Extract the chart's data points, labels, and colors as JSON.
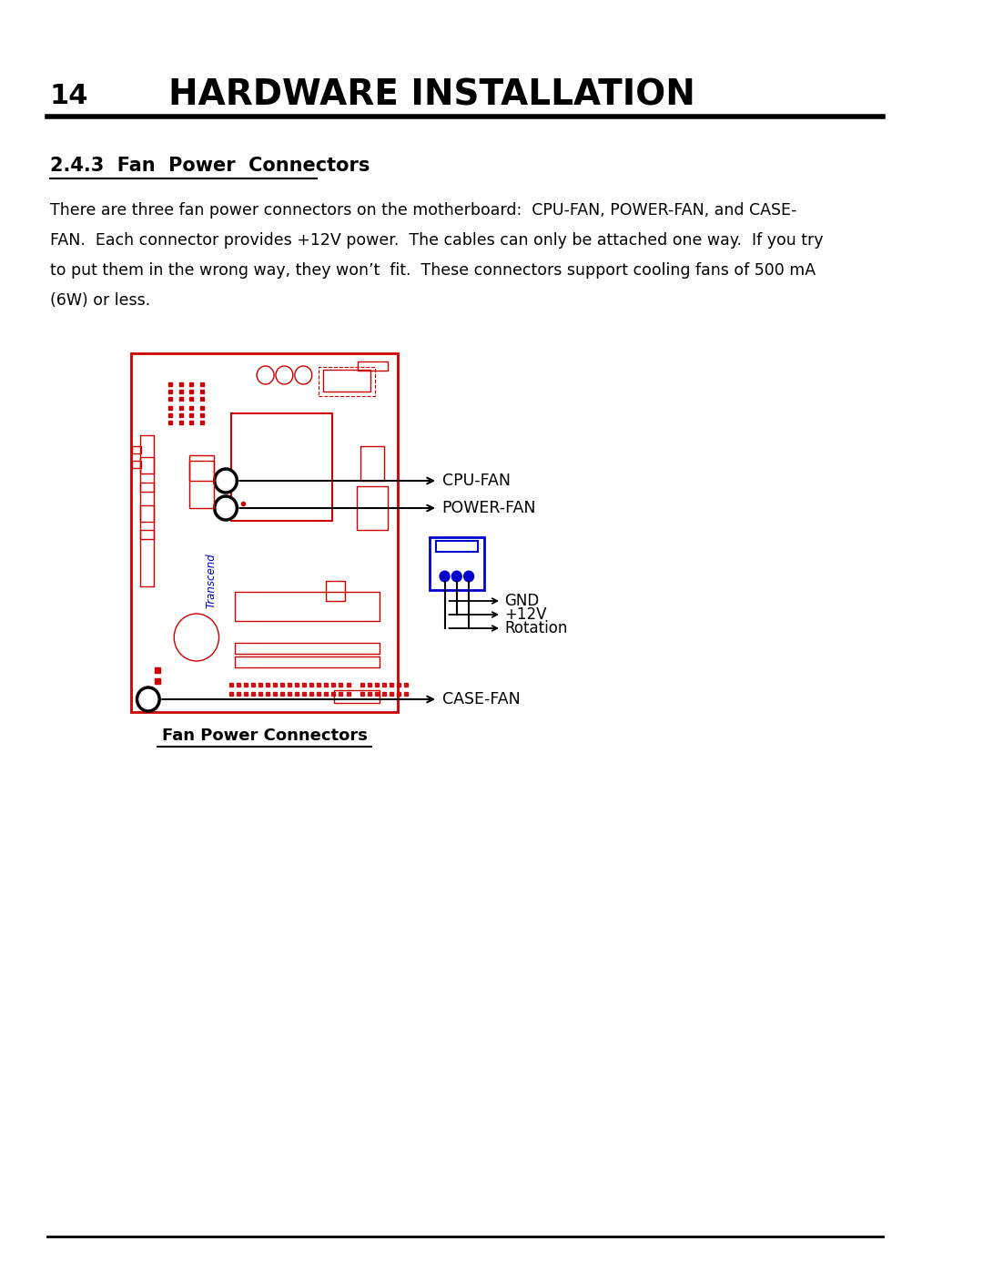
{
  "page_number": "14",
  "chapter_title": "HARDWARE INSTALLATION",
  "section_title": "2.4.3  Fan  Power  Connectors",
  "body_lines": [
    "There are three fan power connectors on the motherboard:  CPU-FAN, POWER-FAN, and CASE-",
    "FAN.  Each connector provides +12V power.  The cables can only be attached one way.  If you try",
    "to put them in the wrong way, they won’t  fit.  These connectors support cooling fans of 500 mA",
    "(6W) or less."
  ],
  "caption": "Fan Power Connectors",
  "labels": [
    "CPU-FAN",
    "POWER-FAN",
    "CASE-FAN"
  ],
  "connector_labels": [
    "GND",
    "+12V",
    "Rotation"
  ],
  "bg_color": "#ffffff",
  "text_color": "#000000",
  "red_color": "#cc0000",
  "blue_color": "#0000cc"
}
